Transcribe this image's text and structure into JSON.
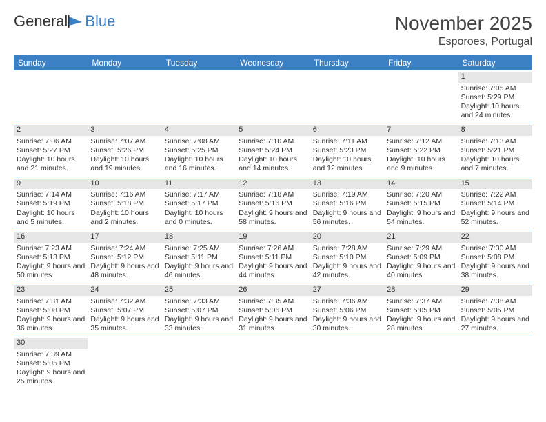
{
  "logo": {
    "text1": "General",
    "text2": "Blue"
  },
  "title": "November 2025",
  "location": "Esporoes, Portugal",
  "colors": {
    "header_bg": "#3b7fc4",
    "header_text": "#ffffff",
    "daynum_bg": "#e6e6e6",
    "week_divider": "#3b7fc4",
    "text": "#333333",
    "background": "#ffffff"
  },
  "day_names": [
    "Sunday",
    "Monday",
    "Tuesday",
    "Wednesday",
    "Thursday",
    "Friday",
    "Saturday"
  ],
  "weeks": [
    [
      {
        "empty": true
      },
      {
        "empty": true
      },
      {
        "empty": true
      },
      {
        "empty": true
      },
      {
        "empty": true
      },
      {
        "empty": true
      },
      {
        "day": "1",
        "sunrise": "Sunrise: 7:05 AM",
        "sunset": "Sunset: 5:29 PM",
        "daylight": "Daylight: 10 hours and 24 minutes."
      }
    ],
    [
      {
        "day": "2",
        "sunrise": "Sunrise: 7:06 AM",
        "sunset": "Sunset: 5:27 PM",
        "daylight": "Daylight: 10 hours and 21 minutes."
      },
      {
        "day": "3",
        "sunrise": "Sunrise: 7:07 AM",
        "sunset": "Sunset: 5:26 PM",
        "daylight": "Daylight: 10 hours and 19 minutes."
      },
      {
        "day": "4",
        "sunrise": "Sunrise: 7:08 AM",
        "sunset": "Sunset: 5:25 PM",
        "daylight": "Daylight: 10 hours and 16 minutes."
      },
      {
        "day": "5",
        "sunrise": "Sunrise: 7:10 AM",
        "sunset": "Sunset: 5:24 PM",
        "daylight": "Daylight: 10 hours and 14 minutes."
      },
      {
        "day": "6",
        "sunrise": "Sunrise: 7:11 AM",
        "sunset": "Sunset: 5:23 PM",
        "daylight": "Daylight: 10 hours and 12 minutes."
      },
      {
        "day": "7",
        "sunrise": "Sunrise: 7:12 AM",
        "sunset": "Sunset: 5:22 PM",
        "daylight": "Daylight: 10 hours and 9 minutes."
      },
      {
        "day": "8",
        "sunrise": "Sunrise: 7:13 AM",
        "sunset": "Sunset: 5:21 PM",
        "daylight": "Daylight: 10 hours and 7 minutes."
      }
    ],
    [
      {
        "day": "9",
        "sunrise": "Sunrise: 7:14 AM",
        "sunset": "Sunset: 5:19 PM",
        "daylight": "Daylight: 10 hours and 5 minutes."
      },
      {
        "day": "10",
        "sunrise": "Sunrise: 7:16 AM",
        "sunset": "Sunset: 5:18 PM",
        "daylight": "Daylight: 10 hours and 2 minutes."
      },
      {
        "day": "11",
        "sunrise": "Sunrise: 7:17 AM",
        "sunset": "Sunset: 5:17 PM",
        "daylight": "Daylight: 10 hours and 0 minutes."
      },
      {
        "day": "12",
        "sunrise": "Sunrise: 7:18 AM",
        "sunset": "Sunset: 5:16 PM",
        "daylight": "Daylight: 9 hours and 58 minutes."
      },
      {
        "day": "13",
        "sunrise": "Sunrise: 7:19 AM",
        "sunset": "Sunset: 5:16 PM",
        "daylight": "Daylight: 9 hours and 56 minutes."
      },
      {
        "day": "14",
        "sunrise": "Sunrise: 7:20 AM",
        "sunset": "Sunset: 5:15 PM",
        "daylight": "Daylight: 9 hours and 54 minutes."
      },
      {
        "day": "15",
        "sunrise": "Sunrise: 7:22 AM",
        "sunset": "Sunset: 5:14 PM",
        "daylight": "Daylight: 9 hours and 52 minutes."
      }
    ],
    [
      {
        "day": "16",
        "sunrise": "Sunrise: 7:23 AM",
        "sunset": "Sunset: 5:13 PM",
        "daylight": "Daylight: 9 hours and 50 minutes."
      },
      {
        "day": "17",
        "sunrise": "Sunrise: 7:24 AM",
        "sunset": "Sunset: 5:12 PM",
        "daylight": "Daylight: 9 hours and 48 minutes."
      },
      {
        "day": "18",
        "sunrise": "Sunrise: 7:25 AM",
        "sunset": "Sunset: 5:11 PM",
        "daylight": "Daylight: 9 hours and 46 minutes."
      },
      {
        "day": "19",
        "sunrise": "Sunrise: 7:26 AM",
        "sunset": "Sunset: 5:11 PM",
        "daylight": "Daylight: 9 hours and 44 minutes."
      },
      {
        "day": "20",
        "sunrise": "Sunrise: 7:28 AM",
        "sunset": "Sunset: 5:10 PM",
        "daylight": "Daylight: 9 hours and 42 minutes."
      },
      {
        "day": "21",
        "sunrise": "Sunrise: 7:29 AM",
        "sunset": "Sunset: 5:09 PM",
        "daylight": "Daylight: 9 hours and 40 minutes."
      },
      {
        "day": "22",
        "sunrise": "Sunrise: 7:30 AM",
        "sunset": "Sunset: 5:08 PM",
        "daylight": "Daylight: 9 hours and 38 minutes."
      }
    ],
    [
      {
        "day": "23",
        "sunrise": "Sunrise: 7:31 AM",
        "sunset": "Sunset: 5:08 PM",
        "daylight": "Daylight: 9 hours and 36 minutes."
      },
      {
        "day": "24",
        "sunrise": "Sunrise: 7:32 AM",
        "sunset": "Sunset: 5:07 PM",
        "daylight": "Daylight: 9 hours and 35 minutes."
      },
      {
        "day": "25",
        "sunrise": "Sunrise: 7:33 AM",
        "sunset": "Sunset: 5:07 PM",
        "daylight": "Daylight: 9 hours and 33 minutes."
      },
      {
        "day": "26",
        "sunrise": "Sunrise: 7:35 AM",
        "sunset": "Sunset: 5:06 PM",
        "daylight": "Daylight: 9 hours and 31 minutes."
      },
      {
        "day": "27",
        "sunrise": "Sunrise: 7:36 AM",
        "sunset": "Sunset: 5:06 PM",
        "daylight": "Daylight: 9 hours and 30 minutes."
      },
      {
        "day": "28",
        "sunrise": "Sunrise: 7:37 AM",
        "sunset": "Sunset: 5:05 PM",
        "daylight": "Daylight: 9 hours and 28 minutes."
      },
      {
        "day": "29",
        "sunrise": "Sunrise: 7:38 AM",
        "sunset": "Sunset: 5:05 PM",
        "daylight": "Daylight: 9 hours and 27 minutes."
      }
    ],
    [
      {
        "day": "30",
        "sunrise": "Sunrise: 7:39 AM",
        "sunset": "Sunset: 5:05 PM",
        "daylight": "Daylight: 9 hours and 25 minutes."
      },
      {
        "empty": true
      },
      {
        "empty": true
      },
      {
        "empty": true
      },
      {
        "empty": true
      },
      {
        "empty": true
      },
      {
        "empty": true
      }
    ]
  ]
}
